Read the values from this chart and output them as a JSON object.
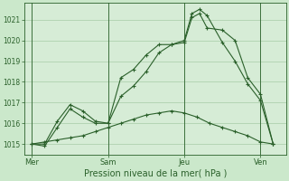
{
  "title": "",
  "xlabel": "Pression niveau de la mer( hPa )",
  "background_color": "#cbe8cb",
  "plot_bg_color": "#d6ecd6",
  "grid_color": "#a8cca8",
  "line_color": "#2a602a",
  "ylim": [
    1014.5,
    1021.8
  ],
  "yticks": [
    1015,
    1016,
    1017,
    1018,
    1019,
    1020,
    1021
  ],
  "day_labels": [
    "Mer",
    "Sam",
    "Jeu",
    "Ven"
  ],
  "day_positions": [
    0,
    3,
    6,
    9
  ],
  "series1_x": [
    0,
    0.5,
    1.0,
    1.5,
    2.0,
    2.5,
    3.0,
    3.5,
    4.0,
    4.5,
    5.0,
    5.5,
    6.0,
    6.3,
    6.6,
    6.9,
    7.5,
    8.0,
    8.5,
    9.0,
    9.5
  ],
  "series1_y": [
    1015.0,
    1015.0,
    1016.1,
    1016.9,
    1016.6,
    1016.1,
    1016.0,
    1018.2,
    1018.6,
    1019.3,
    1019.8,
    1019.8,
    1020.0,
    1021.3,
    1021.5,
    1021.2,
    1019.9,
    1019.0,
    1017.9,
    1017.1,
    1015.0
  ],
  "series2_x": [
    0,
    0.5,
    1.0,
    1.5,
    2.0,
    2.5,
    3.0,
    3.5,
    4.0,
    4.5,
    5.0,
    5.5,
    6.0,
    6.3,
    6.6,
    6.9,
    7.5,
    8.0,
    8.5,
    9.0,
    9.5
  ],
  "series2_y": [
    1015.0,
    1014.9,
    1015.8,
    1016.7,
    1016.3,
    1016.0,
    1016.0,
    1017.3,
    1017.8,
    1018.5,
    1019.4,
    1019.8,
    1019.9,
    1021.1,
    1021.3,
    1020.6,
    1020.5,
    1020.0,
    1018.2,
    1017.4,
    1015.0
  ],
  "series3_x": [
    0,
    0.5,
    1.0,
    1.5,
    2.0,
    2.5,
    3.0,
    3.5,
    4.0,
    4.5,
    5.0,
    5.5,
    6.0,
    6.5,
    7.0,
    7.5,
    8.0,
    8.5,
    9.0,
    9.5
  ],
  "series3_y": [
    1015.0,
    1015.1,
    1015.2,
    1015.3,
    1015.4,
    1015.6,
    1015.8,
    1016.0,
    1016.2,
    1016.4,
    1016.5,
    1016.6,
    1016.5,
    1016.3,
    1016.0,
    1015.8,
    1015.6,
    1015.4,
    1015.1,
    1015.0
  ],
  "xlim": [
    -0.3,
    10.0
  ],
  "figwidth": 3.2,
  "figheight": 2.0,
  "dpi": 100
}
